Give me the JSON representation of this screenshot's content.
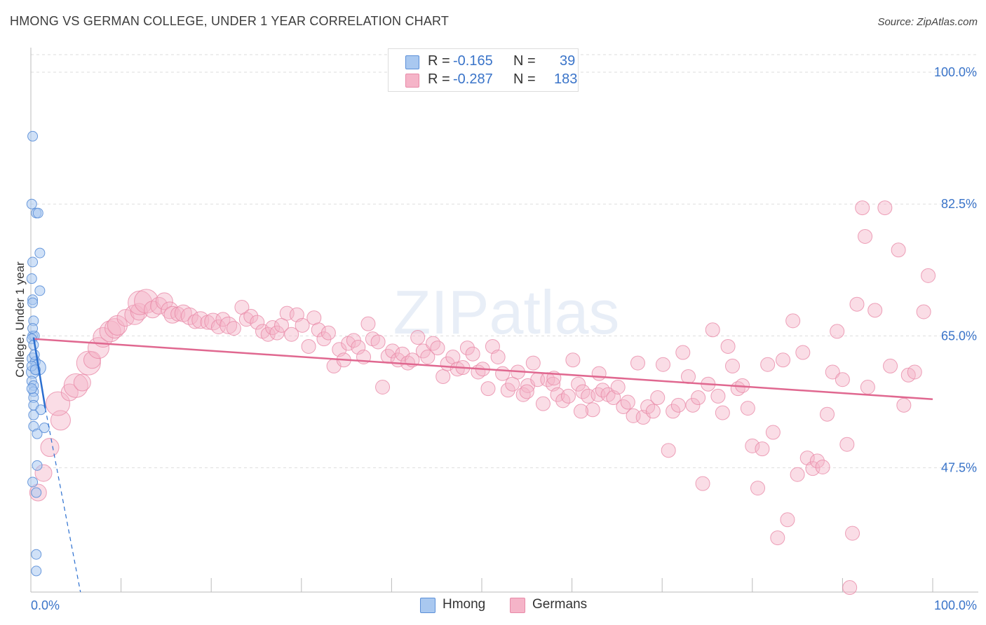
{
  "title": "HMONG VS GERMAN COLLEGE, UNDER 1 YEAR CORRELATION CHART",
  "source": "Source: ZipAtlas.com",
  "watermark": "ZIPatlas",
  "legend": {
    "rows": [
      {
        "r_label": "R =",
        "r_value": "-0.165",
        "n_label": "N =",
        "n_value": "39"
      },
      {
        "r_label": "R =",
        "r_value": "-0.287",
        "n_label": "N =",
        "n_value": "183"
      }
    ]
  },
  "bottom_legend": {
    "hmong": "Hmong",
    "germans": "Germans"
  },
  "colors": {
    "hmong_fill": "#a9c8f0",
    "hmong_stroke": "#5b8fd8",
    "hmong_line": "#2b6fd0",
    "german_fill": "#f5b4c8",
    "german_stroke": "#e88aa8",
    "german_line": "#e06890",
    "tick_text": "#3a74c9",
    "grid": "#dddddd"
  },
  "chart_data": {
    "type": "scatter",
    "title": "HMONG VS GERMAN COLLEGE, UNDER 1 YEAR CORRELATION CHART",
    "xlabel": "",
    "ylabel": "College, Under 1 year",
    "xlim": [
      0,
      100
    ],
    "ylim": [
      31,
      104
    ],
    "x_tick_labels": [
      "0.0%",
      "100.0%"
    ],
    "y_ticks": [
      47.5,
      65.0,
      82.5,
      100.0
    ],
    "y_tick_labels": [
      "47.5%",
      "65.0%",
      "82.5%",
      "100.0%"
    ],
    "series": [
      {
        "name": "Hmong",
        "r": -0.165,
        "n": 39,
        "trend": {
          "x": [
            0.3,
            1.6
          ],
          "y": [
            64.8,
            55.4
          ]
        },
        "trend_ext": {
          "x": [
            1.6,
            5.5
          ],
          "y": [
            55.4,
            31.0
          ]
        },
        "points": [
          [
            0.2,
            91.5,
            7
          ],
          [
            0.1,
            82.5,
            7
          ],
          [
            0.6,
            81.3,
            7
          ],
          [
            0.8,
            81.3,
            7
          ],
          [
            1.0,
            76.0,
            7
          ],
          [
            0.2,
            74.8,
            7
          ],
          [
            0.1,
            72.6,
            7
          ],
          [
            1.0,
            71.0,
            7
          ],
          [
            0.2,
            69.8,
            7
          ],
          [
            0.2,
            69.4,
            7
          ],
          [
            0.3,
            67.0,
            7
          ],
          [
            0.2,
            65.0,
            7
          ],
          [
            0.4,
            65.0,
            7
          ],
          [
            0.1,
            64.6,
            7
          ],
          [
            0.3,
            63.8,
            7
          ],
          [
            0.2,
            62.0,
            8
          ],
          [
            0.5,
            61.6,
            7
          ],
          [
            0.8,
            60.8,
            11
          ],
          [
            0.2,
            60.2,
            9
          ],
          [
            0.1,
            59.0,
            7
          ],
          [
            0.3,
            58.4,
            7
          ],
          [
            0.3,
            57.6,
            7
          ],
          [
            0.3,
            56.8,
            7
          ],
          [
            0.3,
            55.8,
            7
          ],
          [
            1.1,
            55.2,
            7
          ],
          [
            0.3,
            53.0,
            7
          ],
          [
            1.5,
            52.8,
            7
          ],
          [
            0.7,
            52.0,
            7
          ],
          [
            0.7,
            47.8,
            7
          ],
          [
            0.2,
            45.6,
            7
          ],
          [
            0.6,
            44.2,
            7
          ],
          [
            0.6,
            36.0,
            7
          ],
          [
            0.6,
            33.8,
            7
          ],
          [
            0.1,
            61.0,
            7
          ],
          [
            0.4,
            62.5,
            7
          ],
          [
            0.1,
            58.0,
            7
          ],
          [
            0.2,
            66.0,
            7
          ],
          [
            0.5,
            60.5,
            7
          ],
          [
            0.3,
            54.5,
            7
          ]
        ]
      },
      {
        "name": "Germans",
        "r": -0.287,
        "n": 183,
        "trend": {
          "x": [
            0.3,
            100.0
          ],
          "y": [
            64.6,
            56.6
          ]
        },
        "points": [
          [
            0.8,
            44.2,
            12
          ],
          [
            1.4,
            46.8,
            12
          ],
          [
            2.1,
            50.2,
            13
          ],
          [
            3.3,
            53.8,
            14
          ],
          [
            3.0,
            56.0,
            17
          ],
          [
            4.3,
            57.5,
            12
          ],
          [
            5.0,
            58.4,
            17
          ],
          [
            5.7,
            58.8,
            12
          ],
          [
            6.4,
            61.4,
            17
          ],
          [
            6.8,
            61.8,
            12
          ],
          [
            7.5,
            63.4,
            15
          ],
          [
            8.0,
            64.8,
            14
          ],
          [
            8.8,
            65.6,
            15
          ],
          [
            9.3,
            66.0,
            14
          ],
          [
            9.6,
            66.4,
            14
          ],
          [
            10.5,
            67.4,
            12
          ],
          [
            11.5,
            67.8,
            14
          ],
          [
            12.0,
            68.2,
            12
          ],
          [
            12.1,
            69.4,
            17
          ],
          [
            12.8,
            69.6,
            17
          ],
          [
            13.5,
            68.5,
            12
          ],
          [
            14.2,
            69.0,
            12
          ],
          [
            14.8,
            69.6,
            12
          ],
          [
            15.4,
            68.4,
            12
          ],
          [
            15.7,
            67.8,
            12
          ],
          [
            16.3,
            67.9,
            10
          ],
          [
            16.9,
            68.0,
            12
          ],
          [
            17.6,
            67.6,
            12
          ],
          [
            18.2,
            66.9,
            10
          ],
          [
            18.8,
            67.1,
            12
          ],
          [
            19.6,
            66.8,
            10
          ],
          [
            20.2,
            66.9,
            12
          ],
          [
            20.8,
            66.2,
            10
          ],
          [
            21.3,
            67.2,
            10
          ],
          [
            21.9,
            66.4,
            12
          ],
          [
            22.5,
            66.0,
            10
          ],
          [
            23.4,
            68.8,
            10
          ],
          [
            23.9,
            67.2,
            10
          ],
          [
            24.4,
            67.6,
            10
          ],
          [
            25.1,
            66.8,
            10
          ],
          [
            25.7,
            65.6,
            10
          ],
          [
            26.3,
            65.2,
            10
          ],
          [
            26.8,
            66.1,
            10
          ],
          [
            27.3,
            65.4,
            10
          ],
          [
            27.8,
            66.4,
            10
          ],
          [
            28.4,
            68.0,
            10
          ],
          [
            28.9,
            65.2,
            10
          ],
          [
            29.5,
            67.8,
            10
          ],
          [
            30.1,
            66.4,
            10
          ],
          [
            30.8,
            63.6,
            10
          ],
          [
            31.4,
            67.4,
            10
          ],
          [
            31.9,
            65.8,
            10
          ],
          [
            32.5,
            64.6,
            10
          ],
          [
            33.0,
            65.4,
            10
          ],
          [
            33.6,
            61.0,
            10
          ],
          [
            34.2,
            63.2,
            10
          ],
          [
            34.7,
            61.8,
            10
          ],
          [
            35.2,
            64.0,
            10
          ],
          [
            35.8,
            64.4,
            10
          ],
          [
            36.3,
            63.5,
            10
          ],
          [
            36.9,
            62.2,
            10
          ],
          [
            37.4,
            66.6,
            10
          ],
          [
            37.9,
            64.6,
            10
          ],
          [
            38.5,
            64.2,
            10
          ],
          [
            39.0,
            58.2,
            10
          ],
          [
            39.6,
            62.3,
            10
          ],
          [
            40.1,
            63.0,
            10
          ],
          [
            40.7,
            61.8,
            10
          ],
          [
            41.2,
            62.6,
            10
          ],
          [
            41.8,
            61.4,
            10
          ],
          [
            42.3,
            61.8,
            10
          ],
          [
            42.9,
            64.8,
            10
          ],
          [
            43.5,
            63.0,
            10
          ],
          [
            44.0,
            62.2,
            10
          ],
          [
            44.6,
            64.0,
            10
          ],
          [
            45.1,
            63.4,
            10
          ],
          [
            45.7,
            59.6,
            10
          ],
          [
            46.2,
            61.3,
            10
          ],
          [
            46.8,
            62.2,
            10
          ],
          [
            47.3,
            60.6,
            10
          ],
          [
            47.9,
            60.8,
            10
          ],
          [
            48.4,
            63.4,
            10
          ],
          [
            49.0,
            62.6,
            10
          ],
          [
            49.6,
            60.2,
            10
          ],
          [
            50.1,
            60.6,
            10
          ],
          [
            50.7,
            58.0,
            10
          ],
          [
            51.2,
            63.6,
            10
          ],
          [
            51.8,
            62.2,
            10
          ],
          [
            52.3,
            60.0,
            10
          ],
          [
            52.9,
            57.8,
            10
          ],
          [
            53.4,
            58.6,
            10
          ],
          [
            54.0,
            60.2,
            10
          ],
          [
            54.6,
            57.2,
            10
          ],
          [
            55.1,
            58.4,
            10
          ],
          [
            55.7,
            61.4,
            10
          ],
          [
            56.2,
            59.2,
            10
          ],
          [
            56.8,
            56.0,
            10
          ],
          [
            57.3,
            59.2,
            10
          ],
          [
            57.9,
            58.6,
            10
          ],
          [
            58.4,
            57.2,
            10
          ],
          [
            59.0,
            56.4,
            10
          ],
          [
            59.6,
            57.0,
            10
          ],
          [
            60.1,
            61.8,
            10
          ],
          [
            60.7,
            58.6,
            10
          ],
          [
            61.2,
            57.6,
            10
          ],
          [
            61.8,
            57.0,
            10
          ],
          [
            62.3,
            55.2,
            10
          ],
          [
            62.9,
            57.2,
            10
          ],
          [
            63.4,
            57.8,
            10
          ],
          [
            64.0,
            57.2,
            10
          ],
          [
            64.6,
            56.8,
            10
          ],
          [
            65.1,
            58.2,
            10
          ],
          [
            65.7,
            55.6,
            10
          ],
          [
            66.2,
            56.2,
            10
          ],
          [
            66.8,
            54.4,
            10
          ],
          [
            67.3,
            61.4,
            10
          ],
          [
            67.9,
            54.2,
            10
          ],
          [
            68.4,
            55.6,
            10
          ],
          [
            69.0,
            55.0,
            10
          ],
          [
            69.5,
            56.8,
            10
          ],
          [
            70.1,
            61.2,
            10
          ],
          [
            70.7,
            49.8,
            10
          ],
          [
            71.2,
            55.0,
            10
          ],
          [
            71.8,
            55.8,
            10
          ],
          [
            72.3,
            62.8,
            10
          ],
          [
            72.9,
            59.6,
            10
          ],
          [
            73.4,
            55.8,
            10
          ],
          [
            74.0,
            56.8,
            10
          ],
          [
            74.5,
            45.4,
            10
          ],
          [
            75.1,
            58.6,
            10
          ],
          [
            75.6,
            65.8,
            10
          ],
          [
            76.2,
            57.0,
            10
          ],
          [
            76.7,
            54.8,
            10
          ],
          [
            77.3,
            63.6,
            10
          ],
          [
            77.8,
            61.0,
            10
          ],
          [
            78.4,
            58.0,
            10
          ],
          [
            78.9,
            58.4,
            10
          ],
          [
            79.5,
            55.4,
            10
          ],
          [
            80.0,
            50.4,
            10
          ],
          [
            80.6,
            44.8,
            10
          ],
          [
            81.1,
            50.0,
            10
          ],
          [
            81.7,
            61.2,
            10
          ],
          [
            82.3,
            52.2,
            10
          ],
          [
            82.8,
            38.2,
            10
          ],
          [
            83.4,
            61.8,
            10
          ],
          [
            83.9,
            40.6,
            10
          ],
          [
            84.5,
            67.0,
            10
          ],
          [
            85.0,
            46.6,
            10
          ],
          [
            85.6,
            62.8,
            10
          ],
          [
            86.1,
            48.8,
            10
          ],
          [
            86.7,
            47.4,
            10
          ],
          [
            87.2,
            48.4,
            10
          ],
          [
            87.8,
            47.6,
            10
          ],
          [
            88.3,
            54.6,
            10
          ],
          [
            88.9,
            60.2,
            10
          ],
          [
            89.4,
            65.6,
            10
          ],
          [
            90.0,
            59.2,
            10
          ],
          [
            90.5,
            50.6,
            10
          ],
          [
            91.1,
            38.8,
            10
          ],
          [
            91.6,
            69.2,
            10
          ],
          [
            92.2,
            82.0,
            10
          ],
          [
            92.5,
            78.2,
            10
          ],
          [
            92.8,
            58.2,
            10
          ],
          [
            93.6,
            68.4,
            10
          ],
          [
            94.7,
            82.0,
            10
          ],
          [
            95.3,
            61.0,
            10
          ],
          [
            96.2,
            76.4,
            10
          ],
          [
            96.8,
            55.8,
            10
          ],
          [
            97.3,
            59.8,
            10
          ],
          [
            98.0,
            60.2,
            10
          ],
          [
            99.0,
            68.2,
            10
          ],
          [
            99.5,
            73.0,
            10
          ],
          [
            90.8,
            31.6,
            10
          ],
          [
            61.0,
            55.0,
            10
          ],
          [
            55.0,
            57.6,
            10
          ],
          [
            58.0,
            59.4,
            10
          ],
          [
            63.0,
            60.0,
            10
          ]
        ]
      }
    ]
  }
}
